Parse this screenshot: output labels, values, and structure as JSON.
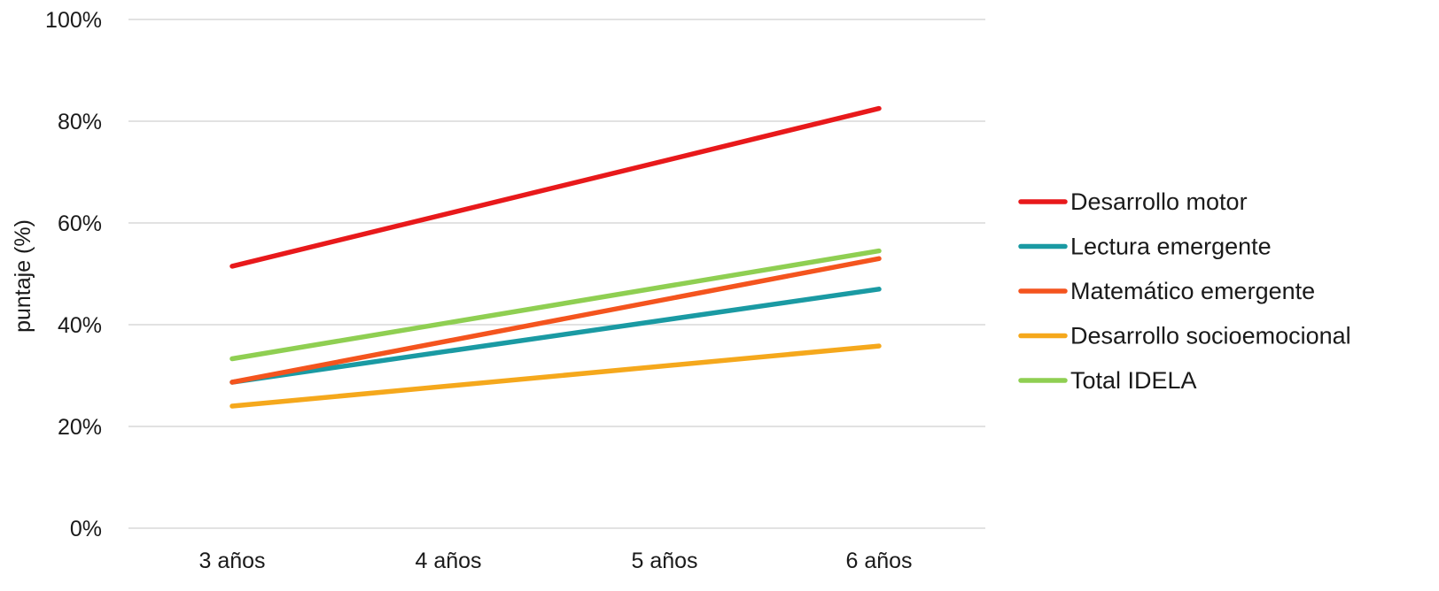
{
  "chart_data": {
    "type": "line",
    "categories": [
      "3 años",
      "4 años",
      "5 años",
      "6 años"
    ],
    "x_positions": [
      0,
      1,
      2,
      3
    ],
    "ylabel": "puntaje (%)",
    "xlabel": "",
    "title": "",
    "ylim": [
      0,
      100
    ],
    "y_ticks": [
      0,
      20,
      40,
      60,
      80,
      100
    ],
    "y_tick_labels": [
      "0%",
      "20%",
      "40%",
      "60%",
      "80%",
      "100%"
    ],
    "grid": true,
    "legend_position": "right",
    "series": [
      {
        "name": "Desarrollo motor",
        "color": "#e8191b",
        "points": [
          {
            "x": 0,
            "y": 51.5
          },
          {
            "x": 3,
            "y": 82.5
          }
        ]
      },
      {
        "name": "Lectura emergente",
        "color": "#1a9aa3",
        "points": [
          {
            "x": 0,
            "y": 28.7
          },
          {
            "x": 3,
            "y": 47.0
          }
        ]
      },
      {
        "name": "Matemático emergente",
        "color": "#f4541e",
        "points": [
          {
            "x": 0,
            "y": 28.7
          },
          {
            "x": 3,
            "y": 53.0
          }
        ]
      },
      {
        "name": "Desarrollo socioemocional",
        "color": "#f5a81c",
        "points": [
          {
            "x": 0,
            "y": 24.0
          },
          {
            "x": 3,
            "y": 35.8
          }
        ]
      },
      {
        "name": "Total IDELA",
        "color": "#8fcf52",
        "points": [
          {
            "x": 0,
            "y": 33.3
          },
          {
            "x": 3,
            "y": 54.5
          }
        ]
      }
    ]
  }
}
